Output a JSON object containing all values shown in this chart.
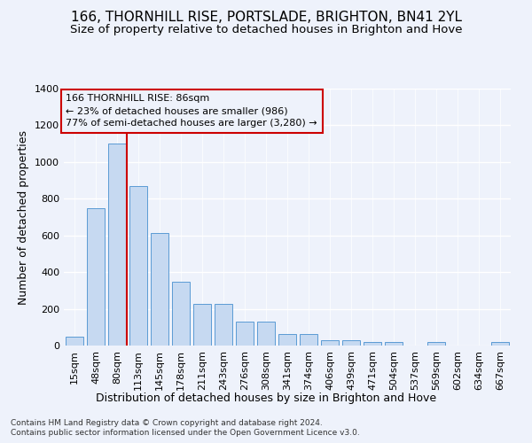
{
  "title": "166, THORNHILL RISE, PORTSLADE, BRIGHTON, BN41 2YL",
  "subtitle": "Size of property relative to detached houses in Brighton and Hove",
  "xlabel": "Distribution of detached houses by size in Brighton and Hove",
  "ylabel": "Number of detached properties",
  "footnote1": "Contains HM Land Registry data © Crown copyright and database right 2024.",
  "footnote2": "Contains public sector information licensed under the Open Government Licence v3.0.",
  "categories": [
    "15sqm",
    "48sqm",
    "80sqm",
    "113sqm",
    "145sqm",
    "178sqm",
    "211sqm",
    "243sqm",
    "276sqm",
    "308sqm",
    "341sqm",
    "374sqm",
    "406sqm",
    "439sqm",
    "471sqm",
    "504sqm",
    "537sqm",
    "569sqm",
    "602sqm",
    "634sqm",
    "667sqm"
  ],
  "values": [
    50,
    750,
    1100,
    870,
    615,
    350,
    225,
    225,
    130,
    130,
    65,
    65,
    30,
    30,
    18,
    18,
    0,
    18,
    0,
    0,
    18
  ],
  "bar_color": "#c6d9f1",
  "bar_edgecolor": "#5b9bd5",
  "annotation_line1": "166 THORNHILL RISE: 86sqm",
  "annotation_line2": "← 23% of detached houses are smaller (986)",
  "annotation_line3": "77% of semi-detached houses are larger (3,280) →",
  "annotation_box_edgecolor": "#cc0000",
  "vline_color": "#cc0000",
  "ylim": [
    0,
    1400
  ],
  "yticks": [
    0,
    200,
    400,
    600,
    800,
    1000,
    1200,
    1400
  ],
  "background_color": "#eef2fb",
  "grid_color": "#ffffff",
  "title_fontsize": 11,
  "subtitle_fontsize": 9.5,
  "axis_label_fontsize": 9,
  "tick_fontsize": 8,
  "annotation_fontsize": 8,
  "footnote_fontsize": 6.5
}
